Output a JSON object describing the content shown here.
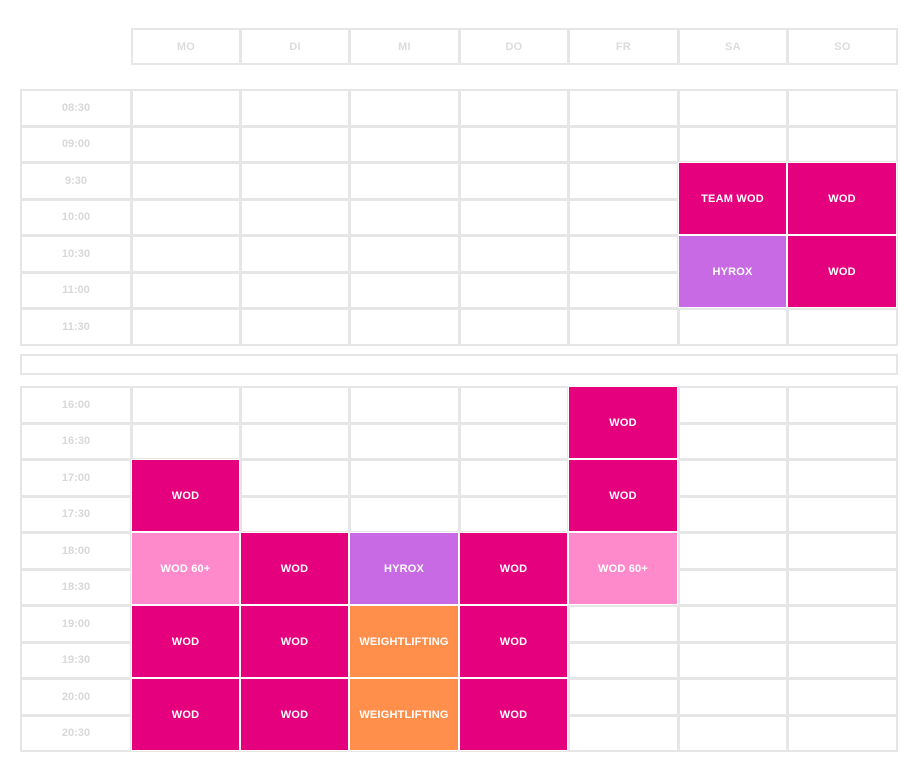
{
  "days": [
    "MO",
    "DI",
    "MI",
    "DO",
    "FR",
    "SA",
    "SO"
  ],
  "morning_times": [
    "08:30",
    "09:00",
    "9:30",
    "10:00",
    "10:30",
    "11:00",
    "11:30"
  ],
  "evening_times": [
    "16:00",
    "16:30",
    "17:00",
    "17:30",
    "18:00",
    "18:30",
    "19:00",
    "19:30",
    "20:00",
    "20:30"
  ],
  "colors": {
    "wod": "#e5007d",
    "hyrox": "#c76ae4",
    "wod60": "#ff8acb",
    "weightlifting": "#ff8f4b",
    "grid": "#e6e6e6"
  },
  "events": [
    {
      "label": "TEAM WOD",
      "block": "morning",
      "day": 5,
      "row": 2,
      "span": 2,
      "kind": "wod"
    },
    {
      "label": "WOD",
      "block": "morning",
      "day": 6,
      "row": 2,
      "span": 2,
      "kind": "wod"
    },
    {
      "label": "HYROX",
      "block": "morning",
      "day": 5,
      "row": 4,
      "span": 2,
      "kind": "hyrox"
    },
    {
      "label": "WOD",
      "block": "morning",
      "day": 6,
      "row": 4,
      "span": 2,
      "kind": "wod"
    },
    {
      "label": "WOD",
      "block": "evening",
      "day": 4,
      "row": 0,
      "span": 2,
      "kind": "wod"
    },
    {
      "label": "WOD",
      "block": "evening",
      "day": 0,
      "row": 2,
      "span": 2,
      "kind": "wod"
    },
    {
      "label": "WOD",
      "block": "evening",
      "day": 4,
      "row": 2,
      "span": 2,
      "kind": "wod"
    },
    {
      "label": "WOD  60+",
      "block": "evening",
      "day": 0,
      "row": 4,
      "span": 2,
      "kind": "wod60"
    },
    {
      "label": "WOD",
      "block": "evening",
      "day": 1,
      "row": 4,
      "span": 2,
      "kind": "wod"
    },
    {
      "label": "HYROX",
      "block": "evening",
      "day": 2,
      "row": 4,
      "span": 2,
      "kind": "hyrox"
    },
    {
      "label": "WOD",
      "block": "evening",
      "day": 3,
      "row": 4,
      "span": 2,
      "kind": "wod"
    },
    {
      "label": "WOD  60+",
      "block": "evening",
      "day": 4,
      "row": 4,
      "span": 2,
      "kind": "wod60"
    },
    {
      "label": "WOD",
      "block": "evening",
      "day": 0,
      "row": 6,
      "span": 2,
      "kind": "wod"
    },
    {
      "label": "WOD",
      "block": "evening",
      "day": 1,
      "row": 6,
      "span": 2,
      "kind": "wod"
    },
    {
      "label": "WEIGHTLIFTING",
      "block": "evening",
      "day": 2,
      "row": 6,
      "span": 2,
      "kind": "weightlifting"
    },
    {
      "label": "WOD",
      "block": "evening",
      "day": 3,
      "row": 6,
      "span": 2,
      "kind": "wod"
    },
    {
      "label": "WOD",
      "block": "evening",
      "day": 0,
      "row": 8,
      "span": 2,
      "kind": "wod"
    },
    {
      "label": "WOD",
      "block": "evening",
      "day": 1,
      "row": 8,
      "span": 2,
      "kind": "wod"
    },
    {
      "label": "WEIGHTLIFTING",
      "block": "evening",
      "day": 2,
      "row": 8,
      "span": 2,
      "kind": "weightlifting"
    },
    {
      "label": "WOD",
      "block": "evening",
      "day": 3,
      "row": 8,
      "span": 2,
      "kind": "wod"
    }
  ]
}
